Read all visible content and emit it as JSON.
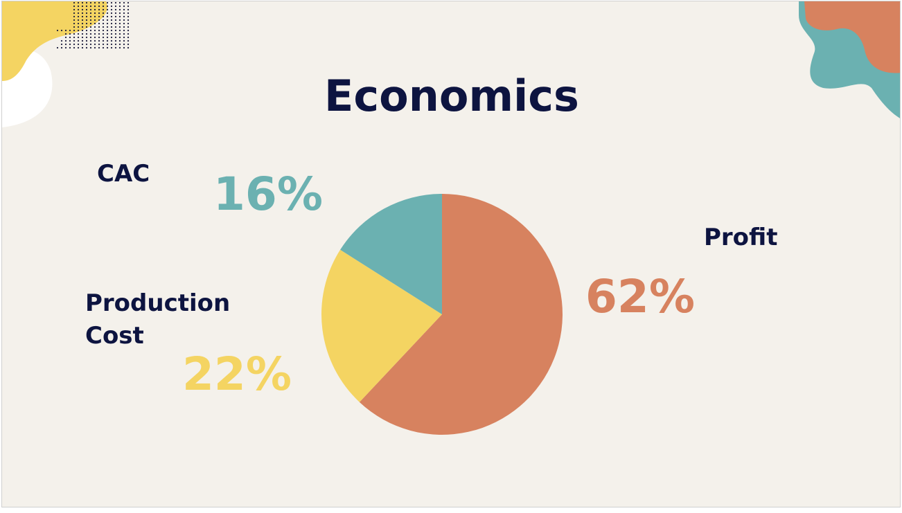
{
  "title": "Economics",
  "colors": {
    "teal": "#6bb1b1",
    "yellow": "#f4d462",
    "orange": "#d7825f",
    "navy": "#0d1440",
    "background": "#f4f1eb"
  },
  "chart_data": {
    "type": "pie",
    "title": "Economics",
    "slices": [
      {
        "name": "Profit",
        "value": 62,
        "label": "62%",
        "color": "#d7825f"
      },
      {
        "name": "Production Cost",
        "value": 22,
        "label": "22%",
        "color": "#f4d462"
      },
      {
        "name": "CAC",
        "value": 16,
        "label": "16%",
        "color": "#6bb1b1"
      }
    ]
  },
  "labels": {
    "cac": "CAC",
    "production_line1": "Production",
    "production_line2": "Cost",
    "profit": "Profit"
  }
}
